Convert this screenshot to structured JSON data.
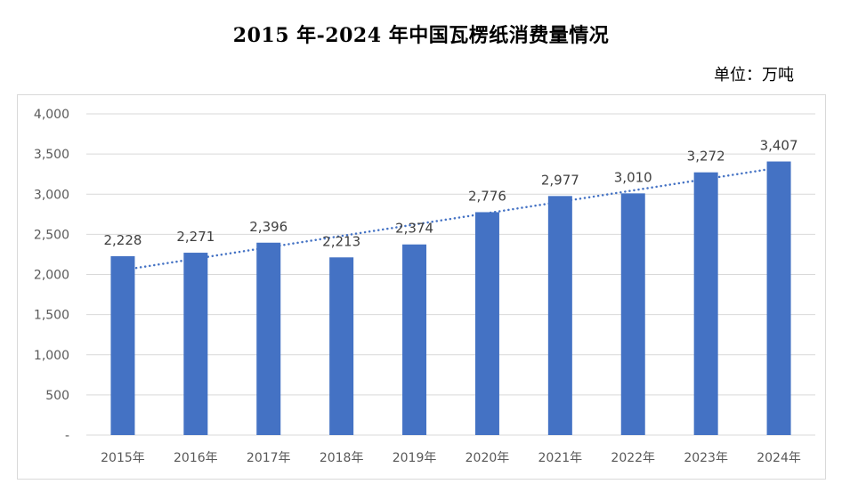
{
  "title": "2015 年-2024 年中国瓦楞纸消费量情况",
  "unit_label": "单位：万吨",
  "colors": {
    "bar": "#4472C4",
    "trendline": "#4472C4",
    "grid": "#d9d9d9"
  },
  "chart_data": {
    "type": "bar",
    "title": "2015 年-2024 年中国瓦楞纸消费量情况",
    "unit": "单位：万吨",
    "categories": [
      "2015年",
      "2016年",
      "2017年",
      "2018年",
      "2019年",
      "2020年",
      "2021年",
      "2022年",
      "2023年",
      "2024年"
    ],
    "values": [
      2228,
      2271,
      2396,
      2213,
      2374,
      2776,
      2977,
      3010,
      3272,
      3407
    ],
    "data_labels": [
      "2,228",
      "2,271",
      "2,396",
      "2,213",
      "2,374",
      "2,776",
      "2,977",
      "3,010",
      "3,272",
      "3,407"
    ],
    "ylim": [
      0,
      4000
    ],
    "yticks": [
      0,
      500,
      1000,
      1500,
      2000,
      2500,
      3000,
      3500,
      4000
    ],
    "ytick_labels": [
      "-",
      "500",
      "1,000",
      "1,500",
      "2,000",
      "2,500",
      "3,000",
      "3,500",
      "4,000"
    ],
    "trendline": "linear, dotted",
    "grid": true,
    "legend": "none"
  }
}
